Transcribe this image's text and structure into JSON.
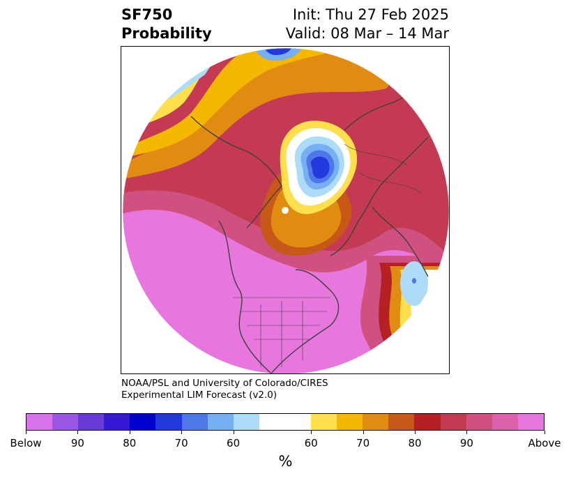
{
  "header": {
    "title_line1": "SF750",
    "title_line2": "Probability",
    "init_text": "Init: Thu 27 Feb 2025",
    "valid_text": "Valid: 08 Mar – 14 Mar"
  },
  "credit": {
    "line1": "NOAA/PSL and University of Colorado/CIRES",
    "line2": "Experimental LIM Forecast (v2.0)"
  },
  "colorbar": {
    "colors": [
      "#d772e8",
      "#9b57e3",
      "#6b3bd9",
      "#3619d5",
      "#0000cc",
      "#2439db",
      "#4e78e8",
      "#76b0f3",
      "#addcf9",
      "#ffffff",
      "#ffffff",
      "#ffe04c",
      "#f5b800",
      "#e08c10",
      "#c85818",
      "#b52024",
      "#c43a52",
      "#d05080",
      "#dc62ac",
      "#e777dc"
    ],
    "ticks": [
      "Below",
      "90",
      "80",
      "70",
      "60",
      "60",
      "70",
      "80",
      "90",
      "Above"
    ],
    "unit_label": "%"
  },
  "map": {
    "layers": [
      {
        "name": "above-extreme",
        "color": "#e777dc"
      },
      {
        "name": "above-90",
        "color": "#dc62ac"
      },
      {
        "name": "above-85",
        "color": "#d05080"
      },
      {
        "name": "above-80",
        "color": "#c43a52"
      },
      {
        "name": "above-75",
        "color": "#b52024"
      },
      {
        "name": "above-70",
        "color": "#c85818"
      },
      {
        "name": "above-65",
        "color": "#e08c10"
      },
      {
        "name": "above-60",
        "color": "#f5b800"
      },
      {
        "name": "above-55",
        "color": "#ffe04c"
      },
      {
        "name": "below-60",
        "color": "#addcf9"
      },
      {
        "name": "below-65",
        "color": "#76b0f3"
      },
      {
        "name": "below-70",
        "color": "#4e78e8"
      },
      {
        "name": "below-75",
        "color": "#2439db"
      }
    ],
    "coastline_color": "#404040"
  }
}
